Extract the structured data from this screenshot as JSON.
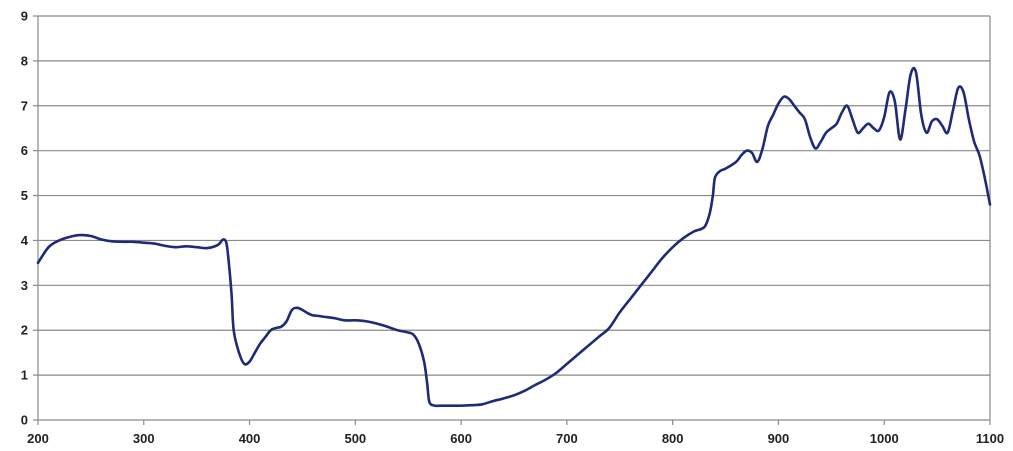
{
  "chart_data": {
    "type": "line",
    "title": "",
    "xlabel": "",
    "ylabel": "",
    "xlim": [
      200,
      1100
    ],
    "ylim": [
      0,
      9
    ],
    "x_ticks": [
      "200",
      "300",
      "400",
      "500",
      "600",
      "700",
      "800",
      "900",
      "1000",
      "1100"
    ],
    "y_ticks": [
      "0",
      "1",
      "2",
      "3",
      "4",
      "5",
      "6",
      "7",
      "8",
      "9"
    ],
    "grid": "horizontal",
    "legend": "none",
    "line_color": "#1f2a78",
    "series": [
      {
        "x": [
          200,
          210,
          220,
          230,
          240,
          250,
          260,
          270,
          280,
          290,
          300,
          310,
          320,
          330,
          340,
          350,
          360,
          370,
          375,
          378,
          380,
          383,
          385,
          390,
          395,
          400,
          405,
          410,
          415,
          420,
          425,
          430,
          435,
          440,
          445,
          450,
          455,
          460,
          465,
          470,
          480,
          490,
          500,
          510,
          520,
          530,
          540,
          550,
          555,
          560,
          565,
          568,
          570,
          575,
          580,
          590,
          600,
          610,
          620,
          630,
          640,
          650,
          660,
          670,
          680,
          690,
          700,
          710,
          720,
          730,
          740,
          750,
          760,
          770,
          780,
          790,
          800,
          810,
          820,
          830,
          835,
          838,
          840,
          845,
          850,
          860,
          865,
          870,
          875,
          880,
          885,
          890,
          895,
          900,
          905,
          910,
          915,
          920,
          925,
          930,
          935,
          940,
          945,
          950,
          955,
          960,
          965,
          970,
          975,
          980,
          985,
          990,
          995,
          1000,
          1005,
          1010,
          1015,
          1020,
          1025,
          1030,
          1035,
          1040,
          1045,
          1050,
          1055,
          1060,
          1065,
          1070,
          1075,
          1080,
          1085,
          1090,
          1095,
          1100
        ],
        "y": [
          3.5,
          3.85,
          4.0,
          4.08,
          4.12,
          4.1,
          4.02,
          3.98,
          3.97,
          3.97,
          3.95,
          3.93,
          3.88,
          3.85,
          3.87,
          3.85,
          3.83,
          3.9,
          4.02,
          3.95,
          3.6,
          2.8,
          2.0,
          1.5,
          1.25,
          1.3,
          1.5,
          1.7,
          1.85,
          2.0,
          2.05,
          2.08,
          2.2,
          2.45,
          2.5,
          2.45,
          2.38,
          2.33,
          2.32,
          2.3,
          2.27,
          2.22,
          2.22,
          2.2,
          2.15,
          2.08,
          2.0,
          1.95,
          1.9,
          1.7,
          1.3,
          0.8,
          0.4,
          0.32,
          0.32,
          0.32,
          0.32,
          0.33,
          0.35,
          0.42,
          0.48,
          0.55,
          0.65,
          0.78,
          0.9,
          1.05,
          1.25,
          1.45,
          1.65,
          1.85,
          2.05,
          2.4,
          2.7,
          3.0,
          3.3,
          3.6,
          3.85,
          4.05,
          4.2,
          4.3,
          4.6,
          5.0,
          5.4,
          5.55,
          5.6,
          5.75,
          5.9,
          6.0,
          5.95,
          5.75,
          6.05,
          6.55,
          6.8,
          7.05,
          7.2,
          7.15,
          7.0,
          6.85,
          6.7,
          6.3,
          6.05,
          6.2,
          6.4,
          6.5,
          6.6,
          6.85,
          7.0,
          6.7,
          6.4,
          6.5,
          6.6,
          6.5,
          6.45,
          6.75,
          7.3,
          7.1,
          6.25,
          6.9,
          7.7,
          7.75,
          6.8,
          6.4,
          6.65,
          6.7,
          6.55,
          6.4,
          6.9,
          7.4,
          7.3,
          6.7,
          6.2,
          5.9,
          5.4,
          4.8
        ]
      }
    ]
  }
}
